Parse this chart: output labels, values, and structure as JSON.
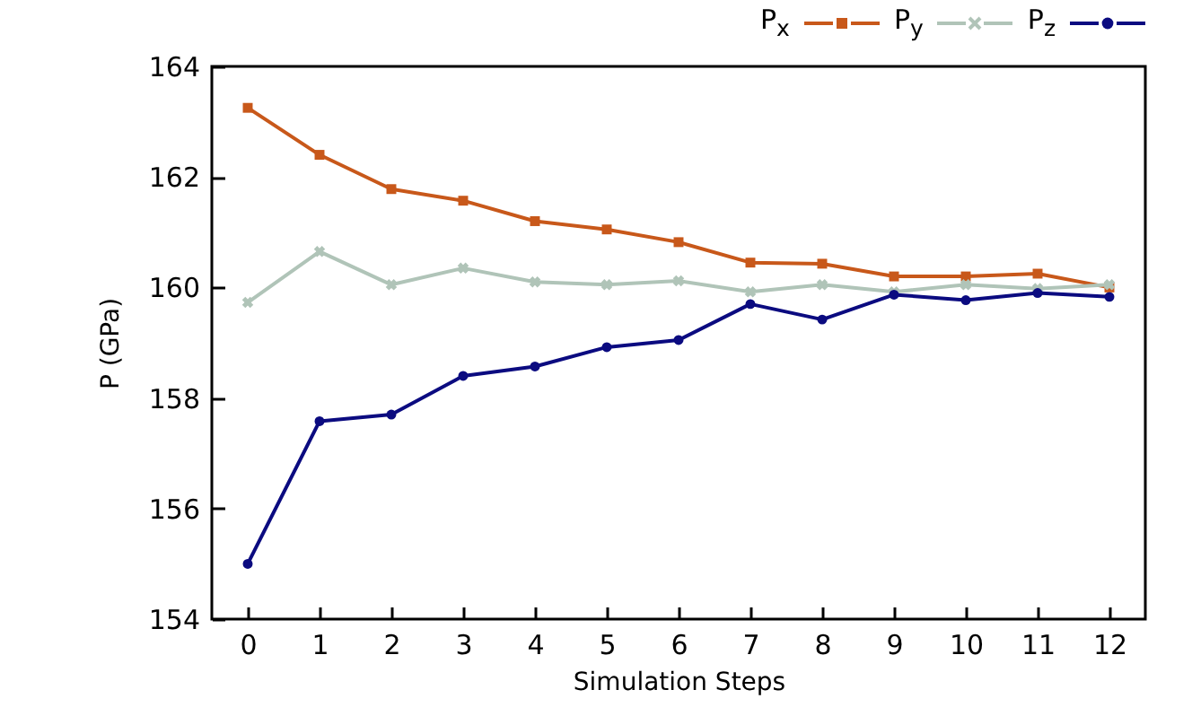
{
  "chart_data": {
    "type": "line",
    "xlabel": "Simulation Steps",
    "ylabel": "P (GPa)",
    "x": [
      0,
      1,
      2,
      3,
      4,
      5,
      6,
      7,
      8,
      9,
      10,
      11,
      12
    ],
    "series": [
      {
        "name": "P$_{x}$",
        "color": "#c8581a",
        "marker": "square",
        "values": [
          163.25,
          162.4,
          161.78,
          161.57,
          161.2,
          161.05,
          160.82,
          160.45,
          160.43,
          160.2,
          160.2,
          160.25,
          160.0
        ]
      },
      {
        "name": "P$_{y}$",
        "color": "#b0c4b8",
        "marker": "cross",
        "values": [
          159.73,
          160.65,
          160.05,
          160.35,
          160.1,
          160.05,
          160.12,
          159.92,
          160.05,
          159.92,
          160.05,
          159.98,
          160.05
        ]
      },
      {
        "name": "P$_{z}$",
        "color": "#0b0b80",
        "marker": "circle",
        "values": [
          155.0,
          157.58,
          157.7,
          158.4,
          158.57,
          158.92,
          159.05,
          159.7,
          159.42,
          159.87,
          159.77,
          159.9,
          159.83
        ]
      }
    ],
    "xlim": [
      -0.5,
      12.5
    ],
    "xticks": [
      0,
      1,
      2,
      3,
      4,
      5,
      6,
      7,
      8,
      9,
      10,
      11,
      12
    ],
    "ylim": [
      154,
      164
    ],
    "yticks": [
      154,
      156,
      158,
      160,
      162,
      164
    ],
    "grid": false,
    "legend": "top right",
    "line_style": "solid"
  }
}
